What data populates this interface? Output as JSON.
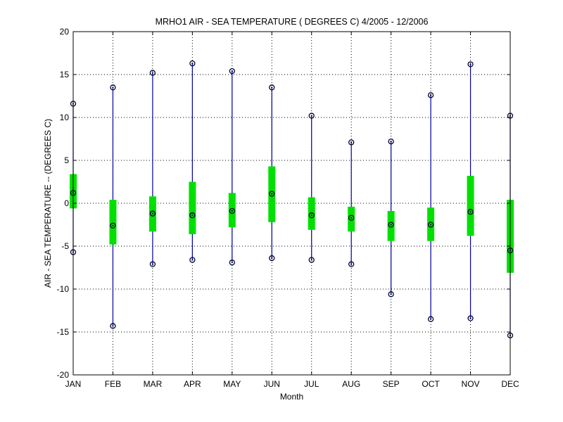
{
  "chart_data": {
    "type": "boxplot",
    "title": "MRHO1  AIR - SEA TEMPERATURE ( DEGREES C) 4/2005 - 12/2006",
    "xlabel": "Month",
    "ylabel": "AIR - SEA TEMPERATURE -- (DEGREES C)",
    "ylim": [
      -20,
      20
    ],
    "yticks": [
      -20,
      -15,
      -10,
      -5,
      0,
      5,
      10,
      15,
      20
    ],
    "grid": true,
    "categories": [
      "JAN",
      "FEB",
      "MAR",
      "APR",
      "MAY",
      "JUN",
      "JUL",
      "AUG",
      "SEP",
      "OCT",
      "NOV",
      "DEC"
    ],
    "min": [
      -5.7,
      -14.3,
      -7.1,
      -6.6,
      -6.9,
      -6.4,
      -6.6,
      -7.1,
      -10.6,
      -13.5,
      -13.4,
      -15.4
    ],
    "q1": [
      -0.6,
      -4.8,
      -3.3,
      -3.6,
      -2.8,
      -2.2,
      -3.1,
      -3.3,
      -4.4,
      -4.4,
      -3.8,
      -8.1
    ],
    "median": [
      1.2,
      -2.6,
      -1.2,
      -1.4,
      -0.9,
      1.1,
      -1.4,
      -1.7,
      -2.5,
      -2.5,
      -1.0,
      -5.5
    ],
    "q3": [
      3.4,
      0.4,
      0.8,
      2.5,
      1.2,
      4.3,
      0.7,
      -0.4,
      -0.9,
      -0.5,
      3.2,
      0.4
    ],
    "max": [
      11.6,
      13.5,
      15.2,
      16.3,
      15.4,
      13.5,
      10.2,
      7.1,
      7.2,
      12.6,
      16.2,
      10.2
    ],
    "colors": {
      "whisker": "#0000a0",
      "box": "#00e000",
      "marker": "#000033",
      "grid": "#000000"
    }
  }
}
